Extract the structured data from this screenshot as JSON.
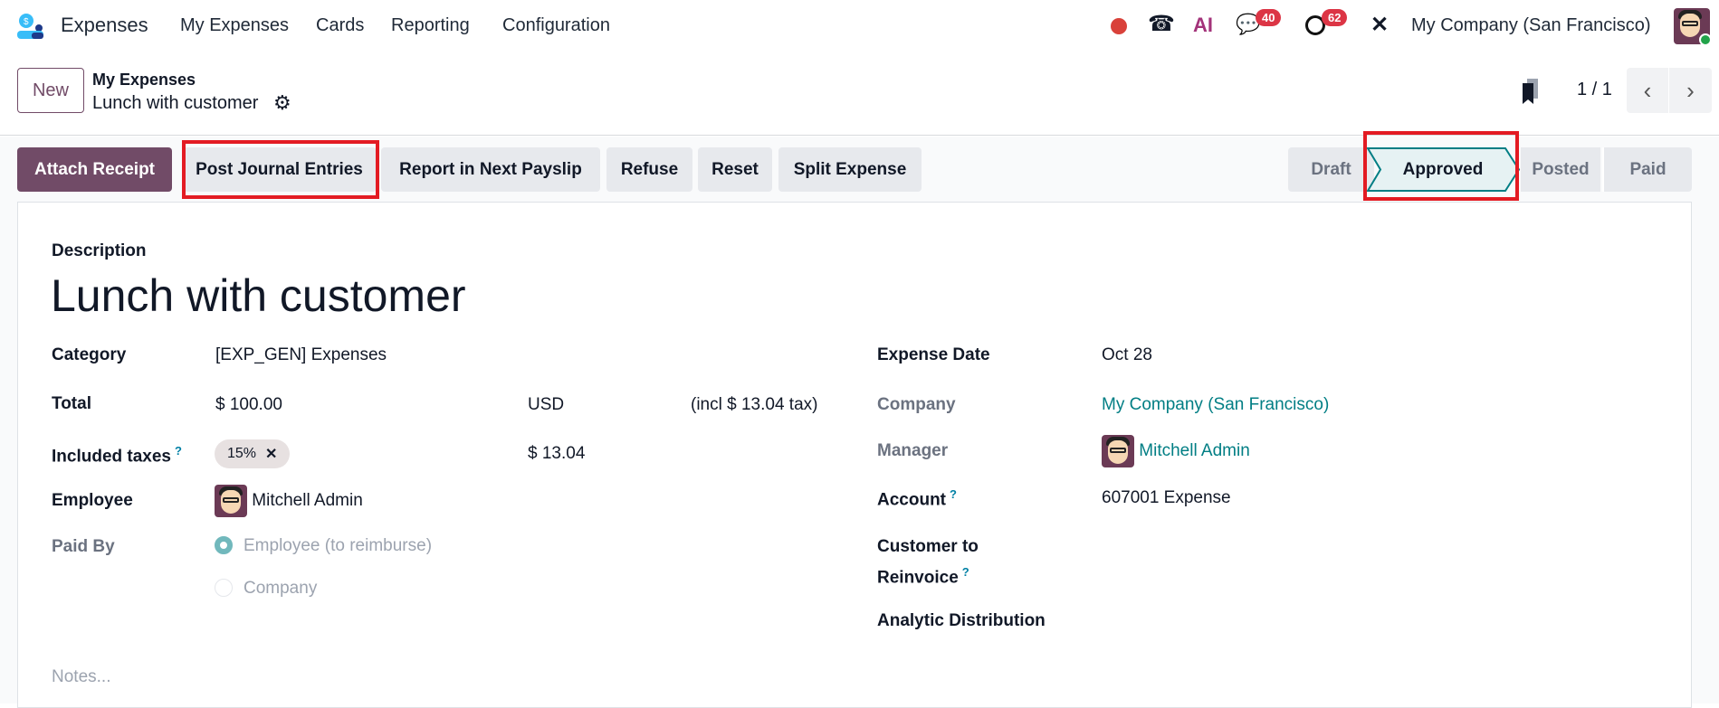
{
  "navbar": {
    "app_name": "Expenses",
    "menu": [
      "My Expenses",
      "Cards",
      "Reporting",
      "Configuration"
    ],
    "chat_count": "40",
    "activity_count": "62",
    "company": "My Company (San Francisco)",
    "ai_label": "AI"
  },
  "control_panel": {
    "new_label": "New",
    "breadcrumb_parent": "My Expenses",
    "breadcrumb_current": "Lunch with customer",
    "pager": "1 / 1"
  },
  "actions": {
    "attach_receipt": "Attach Receipt",
    "post_journal_entries": "Post Journal Entries",
    "report_payslip": "Report in Next Payslip",
    "refuse": "Refuse",
    "reset": "Reset",
    "split_expense": "Split Expense"
  },
  "statusbar": {
    "stages": [
      "Draft",
      "Approved",
      "Posted",
      "Paid"
    ],
    "current": "Approved"
  },
  "form": {
    "description_label": "Description",
    "description": "Lunch with customer",
    "category_label": "Category",
    "category": "[EXP_GEN] Expenses",
    "total_label": "Total",
    "total": "$ 100.00",
    "currency": "USD",
    "tax_note": "(incl $ 13.04 tax)",
    "taxes_label": "Included taxes",
    "tax_tag": "15%",
    "tax_amount": "$ 13.04",
    "employee_label": "Employee",
    "employee": "Mitchell Admin",
    "paid_by_label": "Paid By",
    "paid_by_options": [
      "Employee (to reimburse)",
      "Company"
    ],
    "paid_by_selected": "Employee (to reimburse)",
    "expense_date_label": "Expense Date",
    "expense_date": "Oct 28",
    "company_label": "Company",
    "company": "My Company (San Francisco)",
    "manager_label": "Manager",
    "manager": "Mitchell Admin",
    "account_label": "Account",
    "account": "607001 Expense",
    "customer_label_1": "Customer to",
    "customer_label_2": "Reinvoice",
    "analytic_label": "Analytic Distribution",
    "notes_placeholder": "Notes...",
    "help_mark": "?"
  },
  "colors": {
    "brand": "#714b67",
    "link": "#017e84",
    "highlight": "#e31b23",
    "badge": "#dc3545"
  }
}
